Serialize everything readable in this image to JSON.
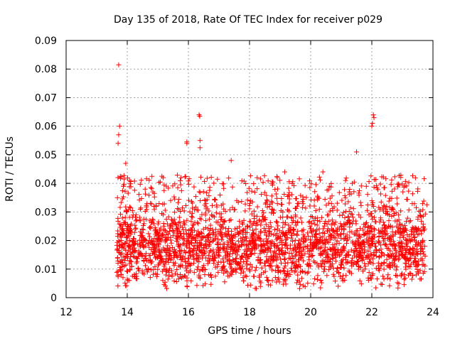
{
  "chart_data": {
    "type": "scatter",
    "title": "Day 135 of 2018, Rate Of TEC Index for receiver p029",
    "xlabel": "GPS time / hours",
    "ylabel": "ROTI / TECUs",
    "xlim": [
      12,
      24
    ],
    "ylim": [
      0,
      0.09
    ],
    "x_ticks": [
      12,
      14,
      16,
      18,
      20,
      22,
      24
    ],
    "y_ticks": [
      0,
      0.01,
      0.02,
      0.03,
      0.04,
      0.05,
      0.06,
      0.07,
      0.08,
      0.09
    ],
    "x_tick_labels": [
      "12",
      "14",
      "16",
      "18",
      "20",
      "22",
      "24"
    ],
    "y_tick_labels": [
      "0",
      "0.01",
      "0.02",
      "0.03",
      "0.04",
      "0.05",
      "0.06",
      "0.07",
      "0.08",
      "0.09"
    ],
    "grid": true,
    "marker": "+",
    "color": "#ff0000",
    "series": [
      {
        "name": "ROTI",
        "x_range": [
          13.65,
          23.75
        ],
        "notable_points": [
          {
            "x": 13.72,
            "y": 0.0815
          },
          {
            "x": 13.75,
            "y": 0.06
          },
          {
            "x": 13.72,
            "y": 0.057
          },
          {
            "x": 13.7,
            "y": 0.054
          },
          {
            "x": 13.95,
            "y": 0.047
          },
          {
            "x": 16.35,
            "y": 0.064
          },
          {
            "x": 16.37,
            "y": 0.0635
          },
          {
            "x": 16.38,
            "y": 0.055
          },
          {
            "x": 16.38,
            "y": 0.0525
          },
          {
            "x": 15.95,
            "y": 0.054
          },
          {
            "x": 15.95,
            "y": 0.0545
          },
          {
            "x": 22.05,
            "y": 0.064
          },
          {
            "x": 22.07,
            "y": 0.063
          },
          {
            "x": 22.02,
            "y": 0.061
          },
          {
            "x": 22.0,
            "y": 0.06
          },
          {
            "x": 21.5,
            "y": 0.051
          },
          {
            "x": 17.4,
            "y": 0.048
          },
          {
            "x": 19.15,
            "y": 0.044
          },
          {
            "x": 20.4,
            "y": 0.044
          },
          {
            "x": 23.8,
            "y": 0.0325
          }
        ],
        "bulk_y_range": [
          0.003,
          0.045
        ],
        "bulk_y_typical": 0.018
      }
    ]
  }
}
